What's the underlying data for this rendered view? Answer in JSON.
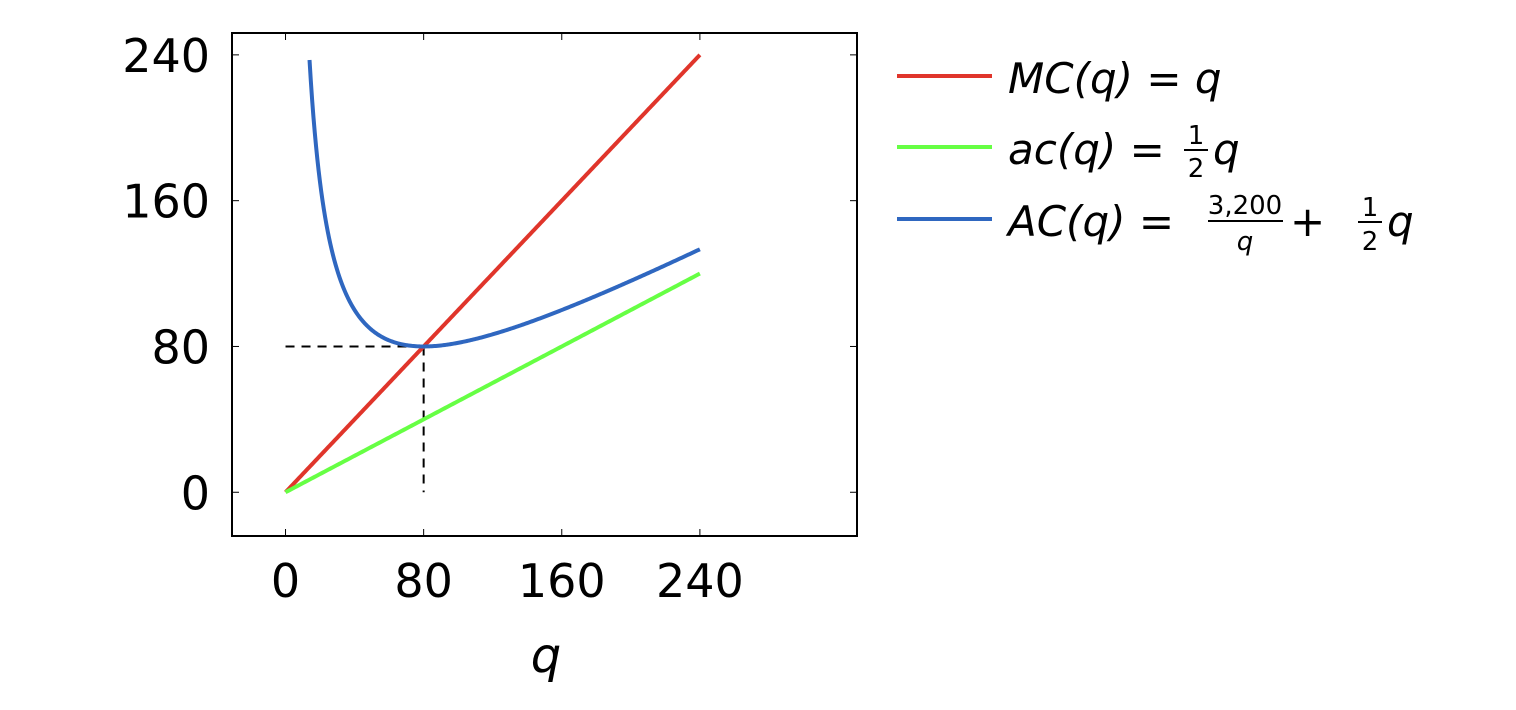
{
  "chart_data": {
    "type": "line",
    "xlabel": "q",
    "ylabel": "",
    "xlim": [
      -31,
      331
    ],
    "ylim": [
      -24,
      252
    ],
    "xticks": [
      0,
      80,
      160,
      240
    ],
    "yticks": [
      0,
      80,
      160,
      240
    ],
    "grid": false,
    "legend_position": "right",
    "series": [
      {
        "key": "mc",
        "name": "MC(q) = q",
        "color": "#e0352b",
        "formula": "q",
        "x_range": [
          0,
          240
        ],
        "label_parts": {
          "a": "MC(q)",
          "eq": " = ",
          "b": "q"
        }
      },
      {
        "key": "ac_lower",
        "name": "ac(q) = 1/2 q",
        "color": "#66ff44",
        "formula": "q/2",
        "x_range": [
          0,
          240
        ],
        "label_parts": {
          "a": "ac(q)",
          "eq": " = ",
          "num": "1",
          "den": "2",
          "b": "q"
        }
      },
      {
        "key": "ac",
        "name": "AC(q) = 3,200/q + 1/2 q",
        "color": "#2f67c0",
        "formula": "3200/q + q/2",
        "x_range": [
          13.9,
          240
        ],
        "label_parts": {
          "a": "AC(q)",
          "eq": " = ",
          "num1": "3,200",
          "den1": "q",
          "plus": " + ",
          "num": "1",
          "den": "2",
          "b": "q"
        }
      }
    ],
    "reference_lines": [
      {
        "type": "horizontal",
        "y": 80,
        "x_from": 0,
        "x_to": 80,
        "style": "dashed"
      },
      {
        "type": "vertical",
        "x": 80,
        "y_from": 0,
        "y_to": 80,
        "style": "dashed"
      }
    ]
  }
}
